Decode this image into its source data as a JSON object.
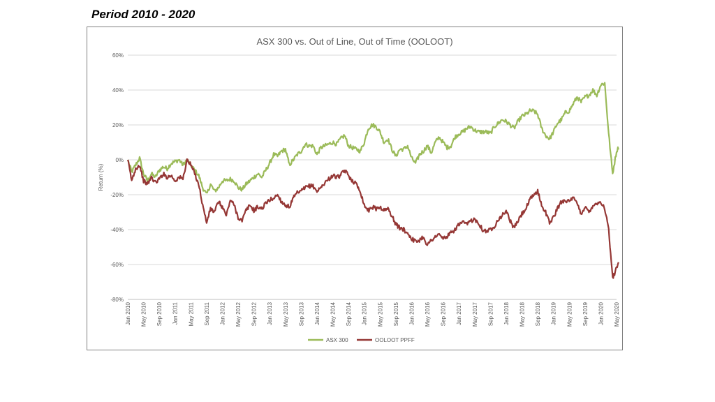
{
  "page": {
    "heading": "Period 2010 - 2020"
  },
  "chart_data": {
    "type": "line",
    "title": "ASX 300 vs. Out of Line, Out of Time (OOLOOT)",
    "xlabel": "",
    "ylabel": "Return (%)",
    "ylim": [
      -80,
      60
    ],
    "yticks": [
      "60%",
      "40%",
      "20%",
      "0%",
      "-20%",
      "-40%",
      "-60%",
      "-80%"
    ],
    "ytick_values": [
      60,
      40,
      20,
      0,
      -20,
      -40,
      -60,
      -80
    ],
    "x_range": [
      "2010-01",
      "2020-05"
    ],
    "xticks": [
      "Jan 2010",
      "May 2010",
      "Sep 2010",
      "Jan 2011",
      "May 2011",
      "Sep 2011",
      "Jan 2012",
      "May 2012",
      "Sep 2012",
      "Jan 2013",
      "May 2013",
      "Sep 2013",
      "Jan 2014",
      "May 2014",
      "Sep 2014",
      "Jan 2015",
      "May 2015",
      "Sep 2015",
      "Jan 2016",
      "May 2016",
      "Sep 2016",
      "Jan 2017",
      "May 2017",
      "Sep 2017",
      "Jan 2018",
      "May 2018",
      "Sep 2018",
      "Jan 2019",
      "May 2019",
      "Sep 2019",
      "Jan 2020",
      "May 2020"
    ],
    "grid": true,
    "legend_position": "bottom",
    "series": [
      {
        "name": "ASX 300",
        "color": "#9bbb59",
        "points": [
          [
            "2010-01",
            0
          ],
          [
            "2010-02",
            -7
          ],
          [
            "2010-03",
            -3
          ],
          [
            "2010-04",
            1
          ],
          [
            "2010-05",
            -8
          ],
          [
            "2010-06",
            -12
          ],
          [
            "2010-07",
            -8
          ],
          [
            "2010-08",
            -10
          ],
          [
            "2010-09",
            -6
          ],
          [
            "2010-10",
            -4
          ],
          [
            "2010-11",
            -5
          ],
          [
            "2010-12",
            -2
          ],
          [
            "2011-01",
            -1
          ],
          [
            "2011-02",
            0
          ],
          [
            "2011-03",
            -3
          ],
          [
            "2011-04",
            0
          ],
          [
            "2011-05",
            -3
          ],
          [
            "2011-06",
            -6
          ],
          [
            "2011-07",
            -9
          ],
          [
            "2011-08",
            -16
          ],
          [
            "2011-09",
            -20
          ],
          [
            "2011-10",
            -14
          ],
          [
            "2011-11",
            -18
          ],
          [
            "2011-12",
            -16
          ],
          [
            "2012-01",
            -12
          ],
          [
            "2012-02",
            -12
          ],
          [
            "2012-03",
            -11
          ],
          [
            "2012-04",
            -12
          ],
          [
            "2012-05",
            -16
          ],
          [
            "2012-06",
            -17
          ],
          [
            "2012-07",
            -14
          ],
          [
            "2012-08",
            -12
          ],
          [
            "2012-09",
            -10
          ],
          [
            "2012-10",
            -8
          ],
          [
            "2012-11",
            -10
          ],
          [
            "2012-12",
            -6
          ],
          [
            "2013-01",
            -2
          ],
          [
            "2013-02",
            3
          ],
          [
            "2013-03",
            2
          ],
          [
            "2013-04",
            5
          ],
          [
            "2013-05",
            6
          ],
          [
            "2013-06",
            -3
          ],
          [
            "2013-07",
            0
          ],
          [
            "2013-08",
            3
          ],
          [
            "2013-09",
            5
          ],
          [
            "2013-10",
            9
          ],
          [
            "2013-11",
            8
          ],
          [
            "2013-12",
            8
          ],
          [
            "2014-01",
            3
          ],
          [
            "2014-02",
            7
          ],
          [
            "2014-03",
            8
          ],
          [
            "2014-04",
            9
          ],
          [
            "2014-05",
            10
          ],
          [
            "2014-06",
            9
          ],
          [
            "2014-07",
            12
          ],
          [
            "2014-08",
            14
          ],
          [
            "2014-09",
            8
          ],
          [
            "2014-10",
            7
          ],
          [
            "2014-11",
            6
          ],
          [
            "2014-12",
            5
          ],
          [
            "2015-01",
            10
          ],
          [
            "2015-02",
            18
          ],
          [
            "2015-03",
            20
          ],
          [
            "2015-04",
            19
          ],
          [
            "2015-05",
            16
          ],
          [
            "2015-06",
            10
          ],
          [
            "2015-07",
            12
          ],
          [
            "2015-08",
            6
          ],
          [
            "2015-09",
            2
          ],
          [
            "2015-10",
            6
          ],
          [
            "2015-11",
            6
          ],
          [
            "2015-12",
            8
          ],
          [
            "2016-01",
            1
          ],
          [
            "2016-02",
            -2
          ],
          [
            "2016-03",
            3
          ],
          [
            "2016-04",
            5
          ],
          [
            "2016-05",
            8
          ],
          [
            "2016-06",
            4
          ],
          [
            "2016-07",
            10
          ],
          [
            "2016-08",
            13
          ],
          [
            "2016-09",
            10
          ],
          [
            "2016-10",
            7
          ],
          [
            "2016-11",
            8
          ],
          [
            "2016-12",
            13
          ],
          [
            "2017-01",
            15
          ],
          [
            "2017-02",
            16
          ],
          [
            "2017-03",
            18
          ],
          [
            "2017-04",
            19
          ],
          [
            "2017-05",
            17
          ],
          [
            "2017-06",
            16
          ],
          [
            "2017-07",
            16
          ],
          [
            "2017-08",
            16
          ],
          [
            "2017-09",
            15
          ],
          [
            "2017-10",
            19
          ],
          [
            "2017-11",
            21
          ],
          [
            "2017-12",
            23
          ],
          [
            "2018-01",
            22
          ],
          [
            "2018-02",
            20
          ],
          [
            "2018-03",
            18
          ],
          [
            "2018-04",
            22
          ],
          [
            "2018-05",
            25
          ],
          [
            "2018-06",
            26
          ],
          [
            "2018-07",
            28
          ],
          [
            "2018-08",
            28
          ],
          [
            "2018-09",
            26
          ],
          [
            "2018-10",
            18
          ],
          [
            "2018-11",
            14
          ],
          [
            "2018-12",
            12
          ],
          [
            "2019-01",
            16
          ],
          [
            "2019-02",
            21
          ],
          [
            "2019-03",
            23
          ],
          [
            "2019-04",
            27
          ],
          [
            "2019-05",
            28
          ],
          [
            "2019-06",
            32
          ],
          [
            "2019-07",
            36
          ],
          [
            "2019-08",
            33
          ],
          [
            "2019-09",
            36
          ],
          [
            "2019-10",
            37
          ],
          [
            "2019-11",
            40
          ],
          [
            "2019-12",
            37
          ],
          [
            "2020-01",
            43
          ],
          [
            "2020-02",
            44
          ],
          [
            "2020-03",
            15
          ],
          [
            "2020-04",
            -8
          ],
          [
            "2020-05",
            5
          ],
          [
            "2020-06",
            9
          ]
        ]
      },
      {
        "name": "OOLOOT PPFF",
        "color": "#953735",
        "points": [
          [
            "2010-01",
            0
          ],
          [
            "2010-02",
            -12
          ],
          [
            "2010-03",
            -5
          ],
          [
            "2010-04",
            -3
          ],
          [
            "2010-05",
            -12
          ],
          [
            "2010-06",
            -14
          ],
          [
            "2010-07",
            -10
          ],
          [
            "2010-08",
            -13
          ],
          [
            "2010-09",
            -11
          ],
          [
            "2010-10",
            -8
          ],
          [
            "2010-11",
            -10
          ],
          [
            "2010-12",
            -9
          ],
          [
            "2011-01",
            -12
          ],
          [
            "2011-02",
            -10
          ],
          [
            "2011-03",
            -11
          ],
          [
            "2011-04",
            0
          ],
          [
            "2011-05",
            -3
          ],
          [
            "2011-06",
            -8
          ],
          [
            "2011-07",
            -14
          ],
          [
            "2011-08",
            -26
          ],
          [
            "2011-09",
            -36
          ],
          [
            "2011-10",
            -28
          ],
          [
            "2011-11",
            -30
          ],
          [
            "2011-12",
            -24
          ],
          [
            "2012-01",
            -27
          ],
          [
            "2012-02",
            -32
          ],
          [
            "2012-03",
            -23
          ],
          [
            "2012-04",
            -26
          ],
          [
            "2012-05",
            -33
          ],
          [
            "2012-06",
            -35
          ],
          [
            "2012-07",
            -29
          ],
          [
            "2012-08",
            -26
          ],
          [
            "2012-09",
            -29
          ],
          [
            "2012-10",
            -27
          ],
          [
            "2012-11",
            -28
          ],
          [
            "2012-12",
            -25
          ],
          [
            "2013-01",
            -23
          ],
          [
            "2013-02",
            -22
          ],
          [
            "2013-03",
            -20
          ],
          [
            "2013-04",
            -24
          ],
          [
            "2013-05",
            -26
          ],
          [
            "2013-06",
            -27
          ],
          [
            "2013-07",
            -22
          ],
          [
            "2013-08",
            -19
          ],
          [
            "2013-09",
            -18
          ],
          [
            "2013-10",
            -16
          ],
          [
            "2013-11",
            -15
          ],
          [
            "2013-12",
            -15
          ],
          [
            "2014-01",
            -18
          ],
          [
            "2014-02",
            -16
          ],
          [
            "2014-03",
            -13
          ],
          [
            "2014-04",
            -11
          ],
          [
            "2014-05",
            -9
          ],
          [
            "2014-06",
            -10
          ],
          [
            "2014-07",
            -9
          ],
          [
            "2014-08",
            -6
          ],
          [
            "2014-09",
            -9
          ],
          [
            "2014-10",
            -12
          ],
          [
            "2014-11",
            -14
          ],
          [
            "2014-12",
            -18
          ],
          [
            "2015-01",
            -26
          ],
          [
            "2015-02",
            -29
          ],
          [
            "2015-03",
            -27
          ],
          [
            "2015-04",
            -28
          ],
          [
            "2015-05",
            -27
          ],
          [
            "2015-06",
            -29
          ],
          [
            "2015-07",
            -28
          ],
          [
            "2015-08",
            -32
          ],
          [
            "2015-09",
            -37
          ],
          [
            "2015-10",
            -39
          ],
          [
            "2015-11",
            -40
          ],
          [
            "2015-12",
            -42
          ],
          [
            "2016-01",
            -45
          ],
          [
            "2016-02",
            -47
          ],
          [
            "2016-03",
            -46
          ],
          [
            "2016-04",
            -44
          ],
          [
            "2016-05",
            -49
          ],
          [
            "2016-06",
            -46
          ],
          [
            "2016-07",
            -44
          ],
          [
            "2016-08",
            -43
          ],
          [
            "2016-09",
            -45
          ],
          [
            "2016-10",
            -44
          ],
          [
            "2016-11",
            -42
          ],
          [
            "2016-12",
            -40
          ],
          [
            "2017-01",
            -37
          ],
          [
            "2017-02",
            -36
          ],
          [
            "2017-03",
            -37
          ],
          [
            "2017-04",
            -35
          ],
          [
            "2017-05",
            -34
          ],
          [
            "2017-06",
            -36
          ],
          [
            "2017-07",
            -40
          ],
          [
            "2017-08",
            -41
          ],
          [
            "2017-09",
            -40
          ],
          [
            "2017-10",
            -38
          ],
          [
            "2017-11",
            -34
          ],
          [
            "2017-12",
            -32
          ],
          [
            "2018-01",
            -29
          ],
          [
            "2018-02",
            -35
          ],
          [
            "2018-03",
            -39
          ],
          [
            "2018-04",
            -35
          ],
          [
            "2018-05",
            -31
          ],
          [
            "2018-06",
            -28
          ],
          [
            "2018-07",
            -23
          ],
          [
            "2018-08",
            -20
          ],
          [
            "2018-09",
            -18
          ],
          [
            "2018-10",
            -26
          ],
          [
            "2018-11",
            -30
          ],
          [
            "2018-12",
            -36
          ],
          [
            "2019-01",
            -33
          ],
          [
            "2019-02",
            -28
          ],
          [
            "2019-03",
            -24
          ],
          [
            "2019-04",
            -23
          ],
          [
            "2019-05",
            -24
          ],
          [
            "2019-06",
            -22
          ],
          [
            "2019-07",
            -25
          ],
          [
            "2019-08",
            -31
          ],
          [
            "2019-09",
            -27
          ],
          [
            "2019-10",
            -30
          ],
          [
            "2019-11",
            -26
          ],
          [
            "2019-12",
            -25
          ],
          [
            "2020-01",
            -24
          ],
          [
            "2020-02",
            -28
          ],
          [
            "2020-03",
            -40
          ],
          [
            "2020-04",
            -68
          ],
          [
            "2020-05",
            -62
          ],
          [
            "2020-06",
            -55
          ]
        ]
      }
    ]
  }
}
